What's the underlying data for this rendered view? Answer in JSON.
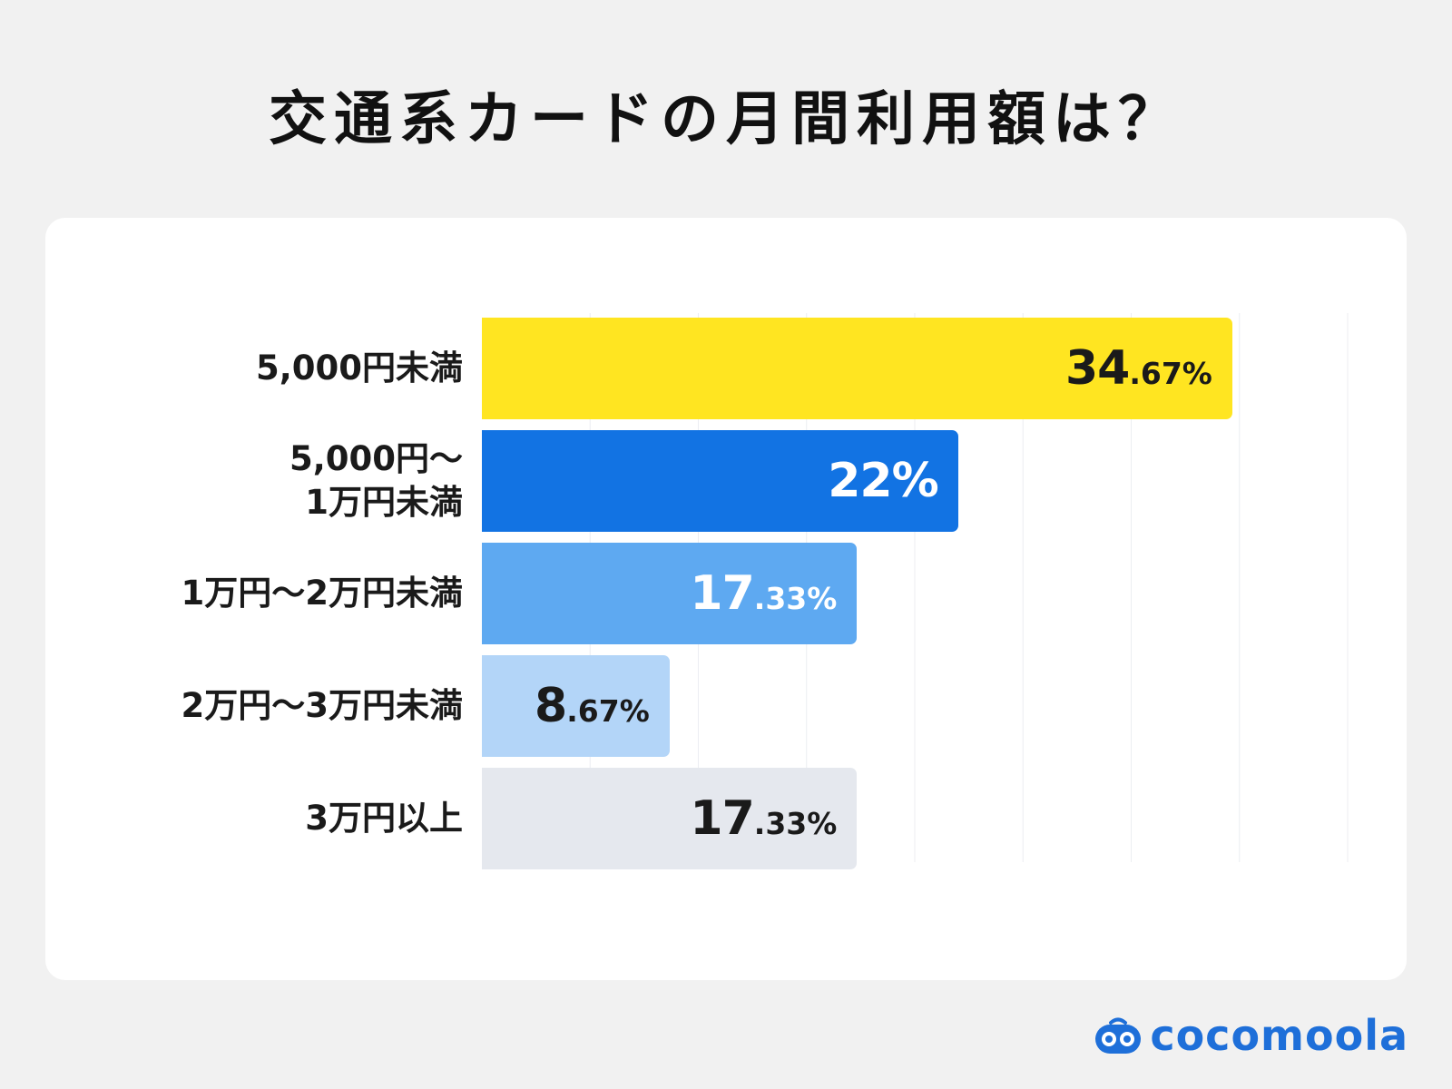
{
  "title": "交通系カードの月間利用額は？",
  "brand": {
    "name": "cocomoola",
    "color": "#1e6fd9",
    "icon": "cocomoola-logo-icon"
  },
  "chart_data": {
    "type": "bar",
    "orientation": "horizontal",
    "title": "交通系カードの月間利用額は？",
    "categories": [
      "5,000円未満",
      "5,000円〜\n1万円未満",
      "1万円〜2万円未満",
      "2万円〜3万円未満",
      "3万円以上"
    ],
    "values": [
      34.67,
      22,
      17.33,
      8.67,
      17.33
    ],
    "value_labels": [
      {
        "int": "34",
        "dec": ".67%"
      },
      {
        "int": "22%",
        "dec": ""
      },
      {
        "int": "17",
        "dec": ".33%"
      },
      {
        "int": "8",
        "dec": ".67%"
      },
      {
        "int": "17",
        "dec": ".33%"
      }
    ],
    "colors": [
      "#ffe521",
      "#1273e3",
      "#5ea9f1",
      "#b3d5f8",
      "#e5e8ee"
    ],
    "label_colors": [
      "#1a1a1a",
      "#ffffff",
      "#ffffff",
      "#1a1a1a",
      "#1a1a1a"
    ],
    "xlim": [
      0,
      40
    ],
    "grid": true,
    "unit": "%"
  }
}
